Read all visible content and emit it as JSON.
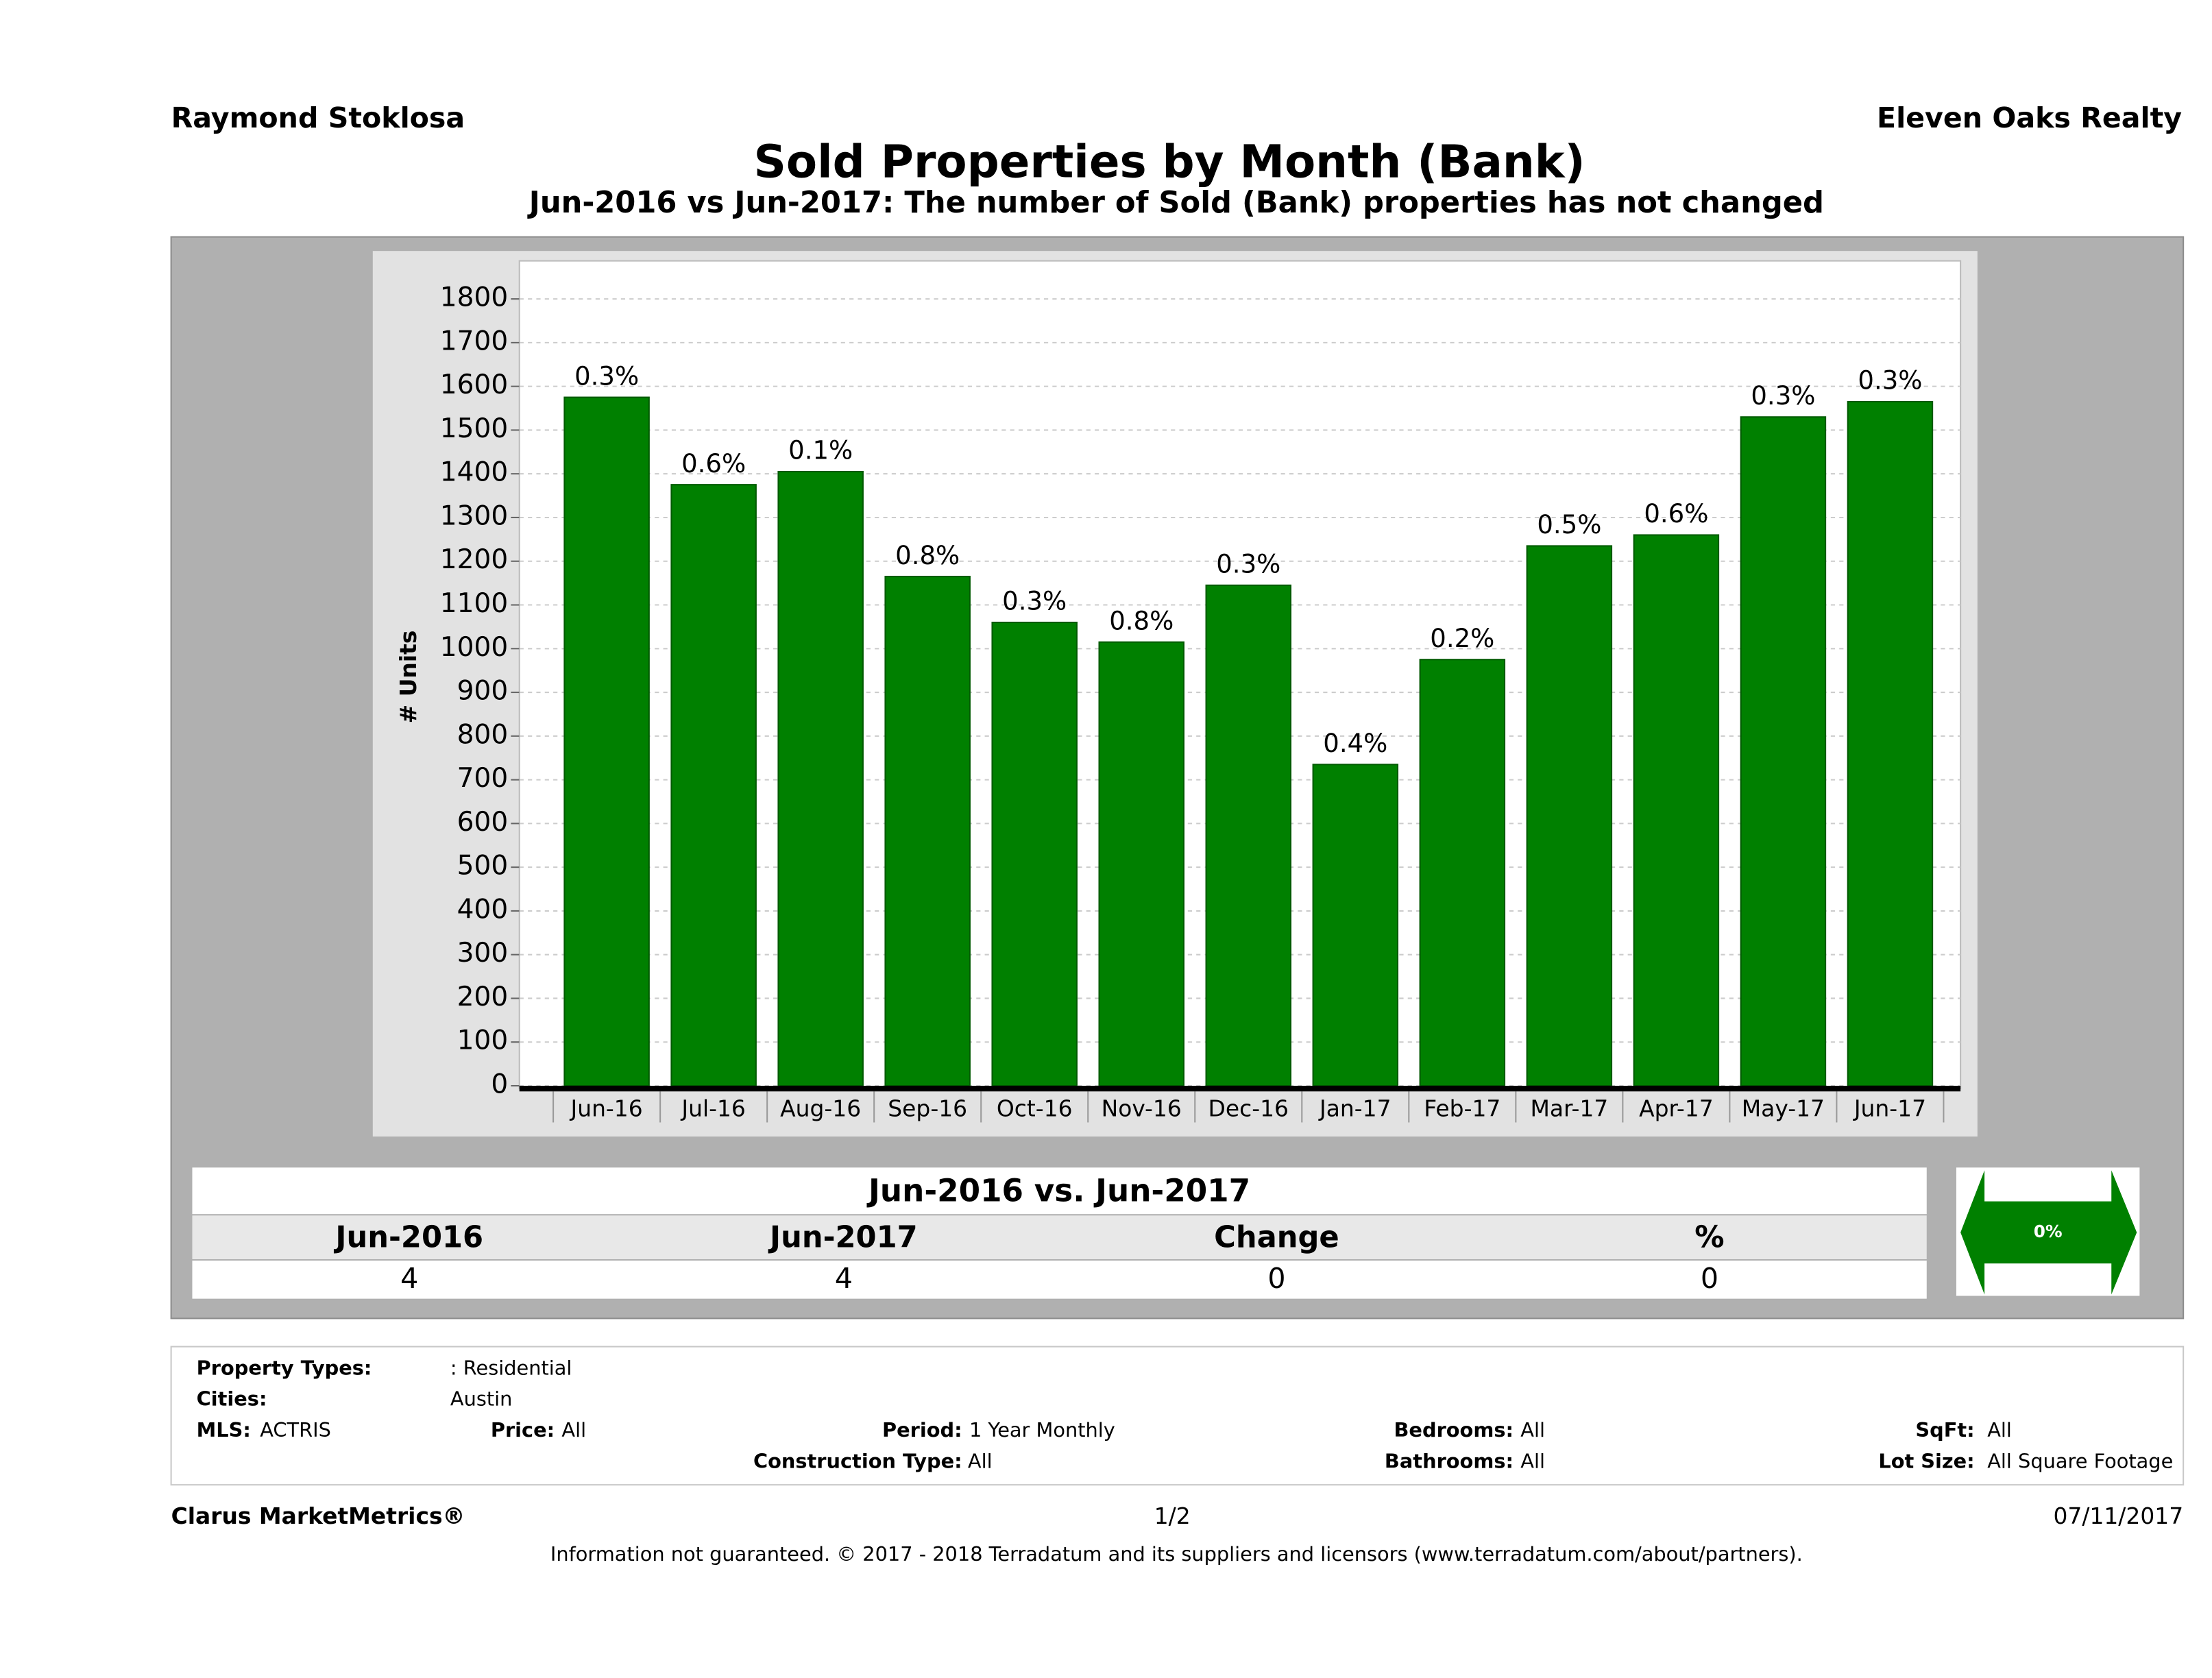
{
  "header": {
    "left": "Raymond Stoklosa",
    "right": "Eleven Oaks Realty"
  },
  "chart_data": {
    "type": "bar",
    "title": "Sold Properties by Month (Bank)",
    "subtitle": "Jun-2016 vs Jun-2017: The number of Sold (Bank)  properties has not changed",
    "y_label": "# Units",
    "categories": [
      "Jun-16",
      "Jul-16",
      "Aug-16",
      "Sep-16",
      "Oct-16",
      "Nov-16",
      "Dec-16",
      "Jan-17",
      "Feb-17",
      "Mar-17",
      "Apr-17",
      "May-17",
      "Jun-17"
    ],
    "values": [
      1575,
      1375,
      1405,
      1165,
      1060,
      1015,
      1145,
      735,
      975,
      1235,
      1260,
      1530,
      1565
    ],
    "bar_labels": [
      "0.3%",
      "0.6%",
      "0.1%",
      "0.8%",
      "0.3%",
      "0.8%",
      "0.3%",
      "0.4%",
      "0.2%",
      "0.5%",
      "0.6%",
      "0.3%",
      "0.3%"
    ],
    "color": "#008000",
    "ylim": [
      0,
      1800
    ],
    "yticks": [
      0,
      100,
      200,
      300,
      400,
      500,
      600,
      700,
      800,
      900,
      1000,
      1100,
      1200,
      1300,
      1400,
      1500,
      1600,
      1700,
      1800
    ],
    "grid": true
  },
  "summary": {
    "title": "Jun-2016 vs. Jun-2017",
    "columns": [
      "Jun-2016",
      "Jun-2017",
      "Change",
      "%"
    ],
    "values": [
      4,
      4,
      0,
      0
    ],
    "badge": "0%"
  },
  "criteria": [
    {
      "label": "Property Types:",
      "value": ": Residential"
    },
    {
      "label": "Cities:",
      "value": "Austin"
    },
    {
      "label": "MLS:",
      "value": "ACTRIS"
    },
    {
      "label": "Price:",
      "value": "All"
    },
    {
      "label": "Period:",
      "value": "1 Year Monthly"
    },
    {
      "label": "Bedrooms:",
      "value": "All"
    },
    {
      "label": "SqFt:",
      "value": "All"
    },
    {
      "label": "Construction Type:",
      "value": "All"
    },
    {
      "label": "Bathrooms:",
      "value": "All"
    },
    {
      "label": "Lot Size:",
      "value": "All Square Footage"
    }
  ],
  "footer": {
    "brand": "Clarus MarketMetrics®",
    "page": "1/2",
    "date": "07/11/2017",
    "disclaimer": "Information not guaranteed. © 2017 - 2018 Terradatum and its suppliers and licensors (www.terradatum.com/about/partners)."
  }
}
